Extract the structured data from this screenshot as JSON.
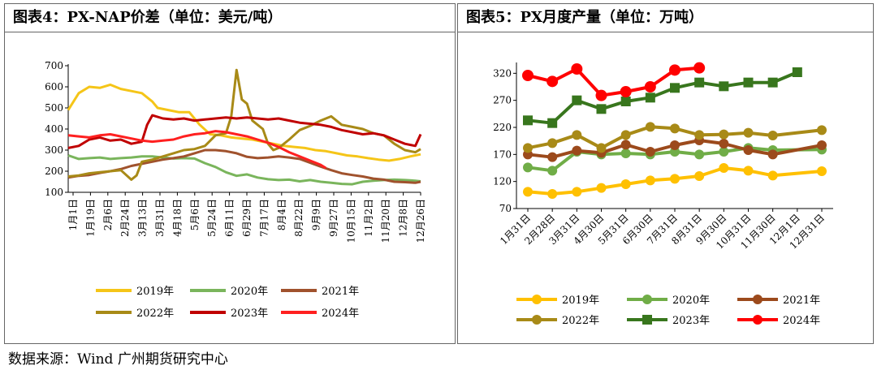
{
  "left_panel": {
    "title": "图表4：PX-NAP价差（单位：美元/吨）"
  },
  "right_panel": {
    "title": "图表5：PX月度产量（单位：万吨）"
  },
  "footer": {
    "source": "数据来源：Wind  广州期货研究中心"
  },
  "chart_data": [
    {
      "type": "line",
      "title": "图表4：PX-NAP价差（单位：美元/吨）",
      "ylim": [
        100,
        700
      ],
      "yticks": [
        100,
        200,
        300,
        400,
        500,
        600,
        700
      ],
      "grid": false,
      "legend": "bottom",
      "categories": [
        "1月1日",
        "1月19日",
        "2月6日",
        "2月24日",
        "3月13日",
        "3月31日",
        "4月18日",
        "5月6日",
        "5月24日",
        "6月11日",
        "6月29日",
        "7月17日",
        "8月4日",
        "8月22日",
        "9月9日",
        "9月27日",
        "10月15日",
        "11月2日",
        "11月20日",
        "12月8日",
        "12月26日"
      ],
      "series": [
        {
          "name": "2019年",
          "color": "#F5C518",
          "points": [
            [
              0,
              490
            ],
            [
              4,
              570
            ],
            [
              8,
              600
            ],
            [
              12,
              595
            ],
            [
              16,
              610
            ],
            [
              20,
              590
            ],
            [
              24,
              580
            ],
            [
              28,
              570
            ],
            [
              32,
              530
            ],
            [
              34,
              500
            ],
            [
              38,
              490
            ],
            [
              42,
              480
            ],
            [
              46,
              480
            ],
            [
              50,
              420
            ],
            [
              54,
              375
            ],
            [
              58,
              370
            ],
            [
              62,
              360
            ],
            [
              66,
              355
            ],
            [
              70,
              350
            ],
            [
              74,
              340
            ],
            [
              78,
              330
            ],
            [
              82,
              320
            ],
            [
              86,
              315
            ],
            [
              90,
              310
            ],
            [
              94,
              300
            ],
            [
              98,
              295
            ],
            [
              102,
              285
            ],
            [
              106,
              275
            ],
            [
              110,
              270
            ],
            [
              114,
              262
            ],
            [
              118,
              255
            ],
            [
              122,
              250
            ],
            [
              126,
              258
            ],
            [
              130,
              270
            ],
            [
              134,
              280
            ]
          ]
        },
        {
          "name": "2020年",
          "color": "#7AB55C",
          "points": [
            [
              0,
              275
            ],
            [
              4,
              258
            ],
            [
              8,
              262
            ],
            [
              12,
              265
            ],
            [
              16,
              258
            ],
            [
              20,
              262
            ],
            [
              24,
              265
            ],
            [
              28,
              270
            ],
            [
              32,
              270
            ],
            [
              36,
              265
            ],
            [
              40,
              260
            ],
            [
              44,
              262
            ],
            [
              48,
              260
            ],
            [
              52,
              238
            ],
            [
              56,
              220
            ],
            [
              60,
              195
            ],
            [
              64,
              178
            ],
            [
              68,
              185
            ],
            [
              72,
              170
            ],
            [
              76,
              162
            ],
            [
              80,
              158
            ],
            [
              84,
              160
            ],
            [
              88,
              152
            ],
            [
              92,
              158
            ],
            [
              96,
              150
            ],
            [
              100,
              145
            ],
            [
              104,
              140
            ],
            [
              108,
              138
            ],
            [
              112,
              150
            ],
            [
              116,
              155
            ],
            [
              120,
              158
            ],
            [
              124,
              160
            ],
            [
              128,
              158
            ],
            [
              132,
              155
            ],
            [
              134,
              152
            ]
          ]
        },
        {
          "name": "2021年",
          "color": "#A0522D",
          "points": [
            [
              0,
              170
            ],
            [
              4,
              178
            ],
            [
              8,
              182
            ],
            [
              12,
              192
            ],
            [
              16,
              200
            ],
            [
              20,
              210
            ],
            [
              24,
              225
            ],
            [
              28,
              235
            ],
            [
              32,
              245
            ],
            [
              36,
              255
            ],
            [
              40,
              262
            ],
            [
              44,
              270
            ],
            [
              48,
              285
            ],
            [
              52,
              300
            ],
            [
              56,
              300
            ],
            [
              60,
              295
            ],
            [
              64,
              285
            ],
            [
              68,
              268
            ],
            [
              72,
              262
            ],
            [
              76,
              265
            ],
            [
              80,
              270
            ],
            [
              84,
              265
            ],
            [
              88,
              258
            ],
            [
              92,
              240
            ],
            [
              96,
              222
            ],
            [
              100,
              205
            ],
            [
              104,
              190
            ],
            [
              108,
              182
            ],
            [
              112,
              175
            ],
            [
              116,
              165
            ],
            [
              120,
              160
            ],
            [
              124,
              150
            ],
            [
              128,
              148
            ],
            [
              132,
              145
            ],
            [
              134,
              150
            ]
          ]
        },
        {
          "name": "2022年",
          "color": "#A88A17",
          "points": [
            [
              0,
              175
            ],
            [
              4,
              180
            ],
            [
              8,
              190
            ],
            [
              12,
              195
            ],
            [
              16,
              200
            ],
            [
              20,
              205
            ],
            [
              24,
              160
            ],
            [
              26,
              180
            ],
            [
              28,
              245
            ],
            [
              32,
              255
            ],
            [
              36,
              270
            ],
            [
              40,
              285
            ],
            [
              44,
              300
            ],
            [
              48,
              305
            ],
            [
              52,
              320
            ],
            [
              56,
              370
            ],
            [
              60,
              380
            ],
            [
              62,
              460
            ],
            [
              64,
              680
            ],
            [
              66,
              540
            ],
            [
              68,
              520
            ],
            [
              70,
              440
            ],
            [
              72,
              420
            ],
            [
              74,
              400
            ],
            [
              76,
              330
            ],
            [
              78,
              300
            ],
            [
              80,
              310
            ],
            [
              84,
              350
            ],
            [
              88,
              395
            ],
            [
              92,
              415
            ],
            [
              96,
              440
            ],
            [
              100,
              460
            ],
            [
              104,
              420
            ],
            [
              108,
              410
            ],
            [
              112,
              400
            ],
            [
              116,
              380
            ],
            [
              120,
              370
            ],
            [
              124,
              330
            ],
            [
              128,
              300
            ],
            [
              132,
              290
            ],
            [
              134,
              305
            ]
          ]
        },
        {
          "name": "2023年",
          "color": "#C00000",
          "points": [
            [
              0,
              310
            ],
            [
              4,
              320
            ],
            [
              8,
              350
            ],
            [
              12,
              360
            ],
            [
              16,
              345
            ],
            [
              20,
              350
            ],
            [
              24,
              330
            ],
            [
              28,
              340
            ],
            [
              30,
              420
            ],
            [
              32,
              465
            ],
            [
              36,
              450
            ],
            [
              40,
              445
            ],
            [
              44,
              450
            ],
            [
              48,
              440
            ],
            [
              52,
              445
            ],
            [
              56,
              450
            ],
            [
              60,
              455
            ],
            [
              64,
              450
            ],
            [
              68,
              455
            ],
            [
              72,
              450
            ],
            [
              76,
              445
            ],
            [
              80,
              450
            ],
            [
              84,
              440
            ],
            [
              88,
              430
            ],
            [
              92,
              425
            ],
            [
              96,
              420
            ],
            [
              100,
              410
            ],
            [
              104,
              395
            ],
            [
              108,
              385
            ],
            [
              112,
              375
            ],
            [
              116,
              380
            ],
            [
              120,
              370
            ],
            [
              124,
              350
            ],
            [
              128,
              330
            ],
            [
              132,
              320
            ],
            [
              134,
              375
            ]
          ]
        },
        {
          "name": "2024年",
          "color": "#FF2020",
          "points": [
            [
              0,
              370
            ],
            [
              4,
              365
            ],
            [
              8,
              360
            ],
            [
              12,
              370
            ],
            [
              16,
              375
            ],
            [
              20,
              365
            ],
            [
              24,
              355
            ],
            [
              28,
              345
            ],
            [
              32,
              340
            ],
            [
              36,
              345
            ],
            [
              40,
              350
            ],
            [
              44,
              365
            ],
            [
              48,
              375
            ],
            [
              52,
              380
            ],
            [
              56,
              390
            ],
            [
              60,
              385
            ],
            [
              64,
              375
            ],
            [
              68,
              365
            ],
            [
              72,
              350
            ],
            [
              76,
              335
            ],
            [
              80,
              315
            ],
            [
              84,
              290
            ],
            [
              88,
              270
            ],
            [
              92,
              250
            ],
            [
              96,
              230
            ],
            [
              98,
              215
            ]
          ]
        }
      ]
    },
    {
      "type": "line",
      "title": "图表5：PX月度产量（单位：万吨）",
      "ylim": [
        70,
        340
      ],
      "yticks": [
        70,
        120,
        170,
        220,
        270,
        320
      ],
      "grid": false,
      "legend": "bottom",
      "categories": [
        "1月31日",
        "2月28日",
        "3月31日",
        "4月30日",
        "5月31日",
        "6月30日",
        "7月31日",
        "8月31日",
        "9月30日",
        "10月31日",
        "11月30日",
        "12月1日",
        "12月31日"
      ],
      "series": [
        {
          "name": "2019年",
          "color": "#FFC000",
          "marker": "circle",
          "values": [
            101,
            97,
            101,
            108,
            115,
            122,
            125,
            130,
            145,
            140,
            131,
            null,
            139
          ]
        },
        {
          "name": "2020年",
          "color": "#70AD47",
          "marker": "circle",
          "values": [
            146,
            140,
            175,
            170,
            172,
            170,
            175,
            170,
            175,
            182,
            178,
            null,
            179
          ]
        },
        {
          "name": "2021年",
          "color": "#9C4A1C",
          "marker": "circle",
          "values": [
            170,
            165,
            177,
            173,
            188,
            175,
            187,
            196,
            190,
            178,
            170,
            null,
            187
          ]
        },
        {
          "name": "2022年",
          "color": "#A88A17",
          "marker": "circle",
          "values": [
            182,
            191,
            206,
            182,
            206,
            221,
            218,
            206,
            207,
            210,
            205,
            null,
            215
          ]
        },
        {
          "name": "2023年",
          "color": "#38761D",
          "marker": "square",
          "values": [
            233,
            228,
            270,
            254,
            268,
            275,
            293,
            303,
            296,
            303,
            303,
            322,
            null
          ]
        },
        {
          "name": "2024年",
          "color": "#FF0000",
          "marker": "circle",
          "values": [
            316,
            305,
            328,
            279,
            286,
            295,
            326,
            330,
            null,
            null,
            null,
            null,
            null
          ]
        }
      ]
    }
  ]
}
